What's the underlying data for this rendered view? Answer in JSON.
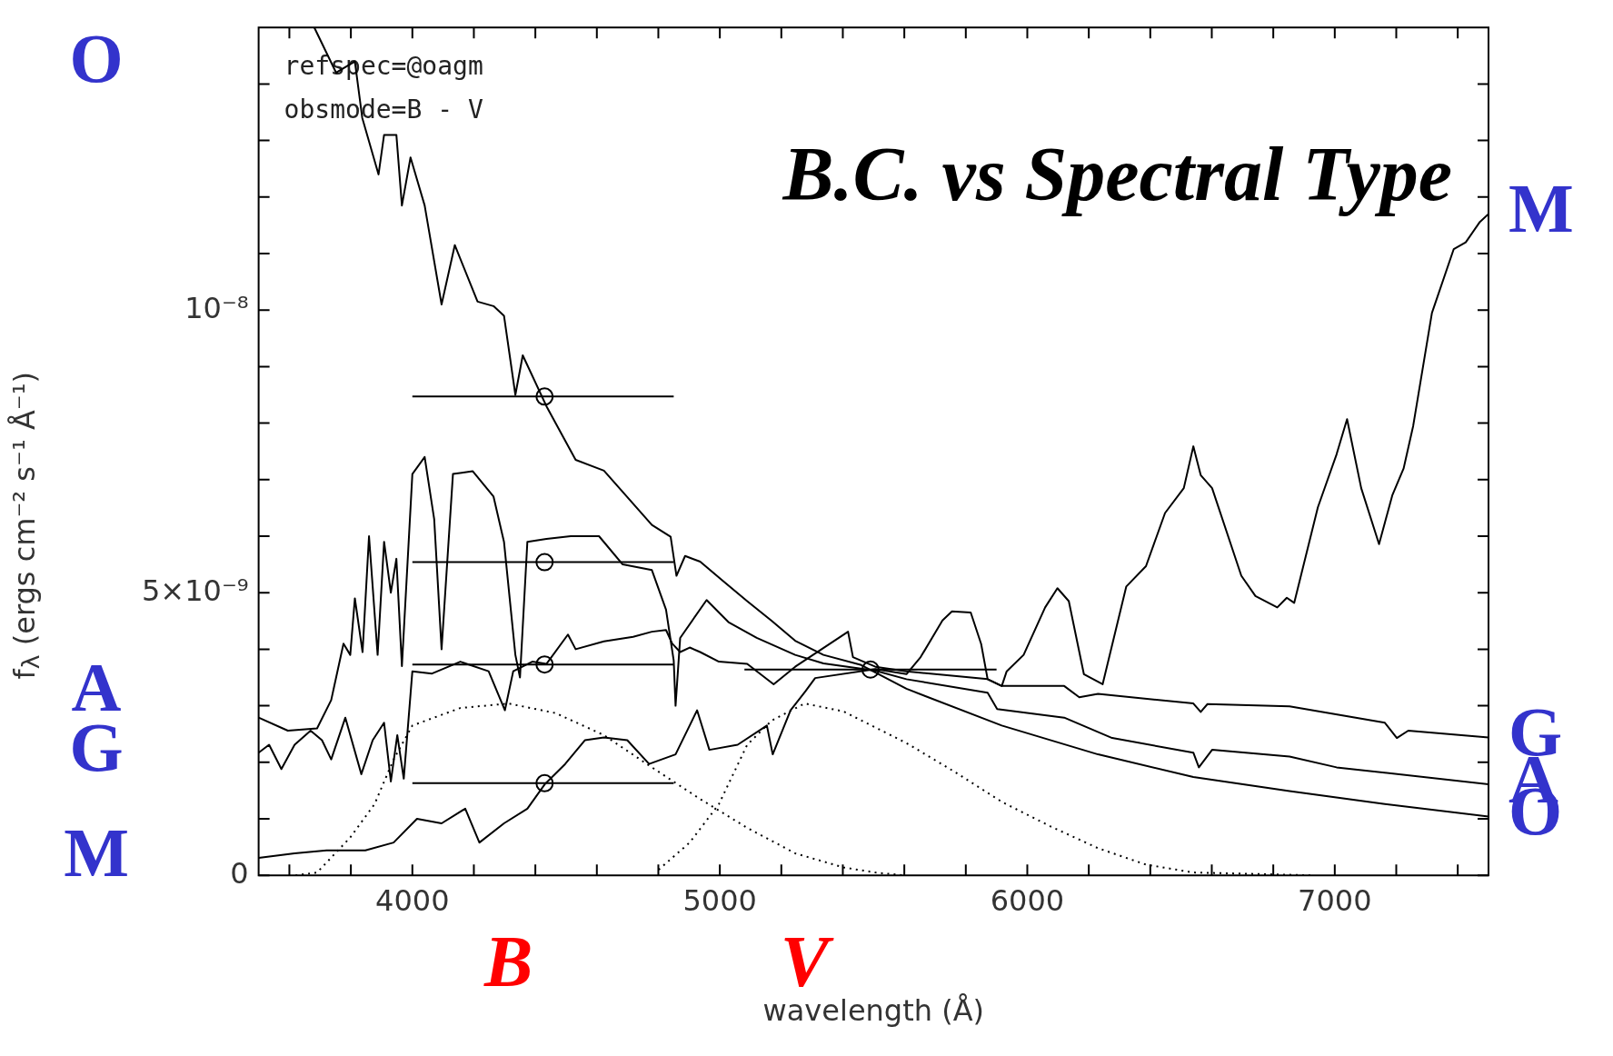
{
  "chart_data": {
    "type": "line",
    "title": "B.C. vs Spectral Type",
    "xlabel": "wavelength (Å)",
    "ylabel": "f$_{λ}$ (ergs cm⁻² s⁻¹ Å⁻¹)",
    "annotations": [
      "refspec=@oagm",
      "obsmode=B - V",
      {
        "text": "B",
        "x": 4313,
        "y": 3.04e-09
      },
      {
        "text": "V",
        "x": 5276,
        "y": 3.04e-09
      }
    ],
    "legend": "right",
    "xlim": [
      3500,
      7500
    ],
    "xticks": [
      {
        "value": 3600,
        "label": null
      },
      {
        "value": 3800,
        "label": null
      },
      4000,
      {
        "value": 4200,
        "label": null
      },
      {
        "value": 4400,
        "label": null
      },
      {
        "value": 4600,
        "label": null
      },
      {
        "value": 4800,
        "label": null
      },
      5000,
      {
        "value": 5200,
        "label": null
      },
      {
        "value": 5400,
        "label": null
      },
      {
        "value": 5600,
        "label": null
      },
      {
        "value": 5800,
        "label": null
      },
      6000,
      {
        "value": 6200,
        "label": null
      },
      {
        "value": 6400,
        "label": null
      },
      {
        "value": 6600,
        "label": null
      },
      {
        "value": 6800,
        "label": null
      },
      7000,
      {
        "value": 7200,
        "label": null
      },
      {
        "value": 7400,
        "label": null
      }
    ],
    "ylim": [
      0,
      1.5e-08
    ],
    "yticks": [
      0,
      {
        "value": 1e-09,
        "label": null
      },
      {
        "value": 2e-09,
        "label": null
      },
      {
        "value": 3e-09,
        "label": null
      },
      {
        "value": 4e-09,
        "label": null
      },
      {
        "value": 5e-09,
        "label": "5×10⁻⁹"
      },
      {
        "value": 6e-09,
        "label": null
      },
      {
        "value": 7e-09,
        "label": null
      },
      {
        "value": 8e-09,
        "label": null
      },
      {
        "value": 9e-09,
        "label": null
      },
      {
        "value": 1e-08,
        "label": "10⁻⁸"
      },
      {
        "value": 1.1e-08,
        "label": null
      },
      {
        "value": 1.2e-08,
        "label": null
      },
      {
        "value": 1.3e-08,
        "label": null
      },
      {
        "value": 1.4e-08,
        "label": null
      }
    ],
    "series": [
      {
        "name": "O",
        "color": "#000000",
        "x": [
          3681,
          3752,
          3813,
          3837,
          3890,
          3908,
          3948,
          3966,
          3994,
          4040,
          4095,
          4138,
          4212,
          4264,
          4298,
          4335,
          4359,
          4436,
          4531,
          4623,
          4779,
          4840,
          4859,
          4887,
          4936,
          5012,
          5089,
          5169,
          5245,
          5337,
          5460,
          5607,
          5917,
          6230,
          6540,
          6853,
          7163,
          7500
        ],
        "values": [
          1.5e-08,
          1.42e-08,
          1.44e-08,
          1.34e-08,
          1.24e-08,
          1.31e-08,
          1.31e-08,
          1.185e-08,
          1.27e-08,
          1.185e-08,
          1.01e-08,
          1.115e-08,
          1.015e-08,
          1.007e-08,
          9.9e-09,
          8.5e-09,
          9.2e-09,
          8.3e-09,
          7.35e-09,
          7.16e-09,
          6.2e-09,
          5.99e-09,
          5.3e-09,
          5.65e-09,
          5.55e-09,
          5.2e-09,
          4.85e-09,
          4.5e-09,
          4.15e-09,
          3.9e-09,
          3.72e-09,
          3.3e-09,
          2.65e-09,
          2.14e-09,
          1.74e-09,
          1.49e-09,
          1.26e-09,
          1.04e-09
        ]
      },
      {
        "name": "A",
        "color": "#000000",
        "x": [
          3500,
          3595,
          3690,
          3736,
          3776,
          3798,
          3813,
          3838,
          3859,
          3887,
          3908,
          3930,
          3948,
          3966,
          4000,
          4040,
          4071,
          4095,
          4132,
          4196,
          4264,
          4298,
          4335,
          4350,
          4374,
          4436,
          4515,
          4607,
          4684,
          4779,
          4825,
          4850,
          4856,
          4871,
          4957,
          5028,
          5120,
          5245,
          5337,
          5506,
          5607,
          5871,
          5902,
          6120,
          6276,
          6540,
          6558,
          6601,
          6853,
          7006,
          7500
        ],
        "values": [
          2.79e-09,
          2.56e-09,
          2.6e-09,
          3.1e-09,
          4.1e-09,
          3.9e-09,
          4.9e-09,
          3.95e-09,
          6e-09,
          3.9e-09,
          5.9e-09,
          5e-09,
          5.6e-09,
          3.7e-09,
          7.1e-09,
          7.4e-09,
          6.3e-09,
          4e-09,
          7.1e-09,
          7.15e-09,
          6.7e-09,
          5.9e-09,
          3.9e-09,
          3.5e-09,
          5.9e-09,
          5.95e-09,
          6e-09,
          6e-09,
          5.5e-09,
          5.4e-09,
          4.7e-09,
          3.8e-09,
          3e-09,
          4.2e-09,
          4.87e-09,
          4.48e-09,
          4.2e-09,
          3.9e-09,
          3.75e-09,
          3.62e-09,
          3.47e-09,
          3.23e-09,
          2.94e-09,
          2.79e-09,
          2.43e-09,
          2.17e-09,
          1.91e-09,
          2.22e-09,
          2.1e-09,
          1.91e-09,
          1.61e-09
        ]
      },
      {
        "name": "G",
        "color": "#000000",
        "x": [
          3500,
          3534,
          3574,
          3617,
          3669,
          3706,
          3736,
          3782,
          3834,
          3871,
          3908,
          3930,
          3951,
          3972,
          4000,
          4064,
          4156,
          4248,
          4301,
          4328,
          4390,
          4436,
          4506,
          4531,
          4623,
          4718,
          4779,
          4825,
          4845,
          4871,
          4902,
          4936,
          4997,
          5089,
          5175,
          5245,
          5417,
          5433,
          5506,
          5607,
          5871,
          5917,
          6120,
          6169,
          6230,
          6540,
          6564,
          6586,
          6853,
          7163,
          7202,
          7239,
          7500
        ],
        "values": [
          2.17e-09,
          2.31e-09,
          1.88e-09,
          2.31e-09,
          2.56e-09,
          2.39e-09,
          2.05e-09,
          2.79e-09,
          1.79e-09,
          2.39e-09,
          2.7e-09,
          1.66e-09,
          2.48e-09,
          1.71e-09,
          3.61e-09,
          3.57e-09,
          3.78e-09,
          3.61e-09,
          2.92e-09,
          3.61e-09,
          3.78e-09,
          3.74e-09,
          4.26e-09,
          4e-09,
          4.14e-09,
          4.22e-09,
          4.31e-09,
          4.34e-09,
          4.1e-09,
          3.95e-09,
          4.03e-09,
          3.95e-09,
          3.78e-09,
          3.74e-09,
          3.38e-09,
          3.69e-09,
          4.31e-09,
          3.86e-09,
          3.69e-09,
          3.61e-09,
          3.47e-09,
          3.35e-09,
          3.35e-09,
          3.15e-09,
          3.21e-09,
          3.04e-09,
          2.89e-09,
          3.03e-09,
          2.99e-09,
          2.7e-09,
          2.43e-09,
          2.56e-09,
          2.44e-09
        ]
      },
      {
        "name": "M",
        "color": "#000000",
        "x": [
          3500,
          3617,
          3721,
          3847,
          3939,
          4015,
          4095,
          4172,
          4218,
          4298,
          4374,
          4432,
          4497,
          4561,
          4623,
          4699,
          4770,
          4856,
          4926,
          4966,
          5058,
          5153,
          5172,
          5230,
          5279,
          5310,
          5506,
          5607,
          5653,
          5724,
          5755,
          5816,
          5850,
          5871,
          5917,
          5933,
          5988,
          6058,
          6098,
          6135,
          6184,
          6245,
          6322,
          6386,
          6448,
          6509,
          6540,
          6564,
          6601,
          6696,
          6742,
          6813,
          6844,
          6868,
          6945,
          7006,
          7040,
          7086,
          7144,
          7187,
          7224,
          7255,
          7316,
          7387,
          7426,
          7472,
          7500
        ],
        "values": [
          3.1e-10,
          3.9e-10,
          4.4e-10,
          4.4e-10,
          5.8e-10,
          1e-09,
          9.2e-10,
          1.18e-09,
          5.8e-10,
          9.2e-10,
          1.18e-09,
          1.62e-09,
          1.97e-09,
          2.39e-09,
          2.44e-09,
          2.39e-09,
          1.97e-09,
          2.14e-09,
          2.92e-09,
          2.22e-09,
          2.31e-09,
          2.65e-09,
          2.14e-09,
          2.92e-09,
          3.26e-09,
          3.49e-09,
          3.65e-09,
          3.56e-09,
          3.86e-09,
          4.51e-09,
          4.67e-09,
          4.65e-09,
          4.09e-09,
          3.47e-09,
          3.35e-09,
          3.61e-09,
          3.9e-09,
          4.74e-09,
          5.08e-09,
          4.85e-09,
          3.56e-09,
          3.38e-09,
          5.11e-09,
          5.47e-09,
          6.41e-09,
          6.85e-09,
          7.59e-09,
          7.08e-09,
          6.85e-09,
          5.3e-09,
          4.94e-09,
          4.74e-09,
          4.91e-09,
          4.82e-09,
          6.51e-09,
          7.45e-09,
          8.07e-09,
          6.85e-09,
          5.86e-09,
          6.72e-09,
          7.2e-09,
          7.95e-09,
          9.95e-09,
          1.108e-08,
          1.12e-08,
          1.156e-08,
          1.17e-08
        ]
      },
      {
        "color": "#000000",
        "line_style": "dotted",
        "x": [
          3620,
          3690,
          3798,
          3877,
          3939,
          4000,
          4156,
          4313,
          4466,
          4623,
          4779,
          4936,
          5089,
          5245,
          5402,
          5506,
          5600
        ],
        "values": [
          0,
          5e-11,
          6.7e-10,
          1.26e-09,
          2.05e-09,
          2.65e-09,
          2.96e-09,
          3.04e-09,
          2.87e-09,
          2.48e-09,
          1.91e-09,
          1.35e-09,
          8.4e-10,
          3.9e-10,
          1.4e-10,
          5e-11,
          0
        ]
      },
      {
        "color": "#000000",
        "line_style": "dotted",
        "x": [
          4801,
          4902,
          4997,
          5089,
          5169,
          5276,
          5402,
          5607,
          5764,
          5917,
          6074,
          6230,
          6386,
          6540,
          6930
        ],
        "values": [
          1e-10,
          5.8e-10,
          1.26e-09,
          2.31e-09,
          2.74e-09,
          3.04e-09,
          2.9e-09,
          2.34e-09,
          1.83e-09,
          1.3e-09,
          8.7e-10,
          4.8e-10,
          1.9e-10,
          5e-11,
          0
        ]
      },
      {
        "type": "scatter",
        "marker": "circle",
        "color": "#000000",
        "x": [
          4430,
          4430,
          4430,
          4430
        ],
        "values": [
          8.47e-09,
          5.54e-09,
          3.73e-09,
          1.63e-09
        ],
        "xerrors": [
          [
            4000,
            4850
          ],
          [
            4000,
            4850
          ],
          [
            4000,
            4850
          ],
          [
            4000,
            4850
          ]
        ]
      },
      {
        "type": "scatter",
        "marker": "circle",
        "color": "#000000",
        "x": [
          5490
        ],
        "values": [
          3.64e-09
        ],
        "xerrors": [
          [
            5080,
            5900
          ]
        ]
      }
    ]
  }
}
